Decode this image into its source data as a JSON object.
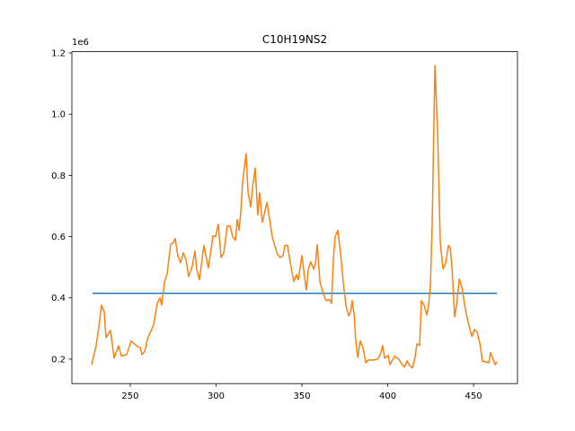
{
  "chart_data": {
    "type": "line",
    "title": "C10H19NS2",
    "offset_label": "1e6",
    "xlim": [
      216,
      475.6
    ],
    "ylim": [
      0.12,
      1.204
    ],
    "xticks": [
      250,
      300,
      350,
      400,
      450
    ],
    "yticks": [
      0.2,
      0.4,
      0.6,
      0.8,
      {
        "value": 1,
        "label": "1.0"
      },
      1.2
    ],
    "series": [
      {
        "color": "#1f77b4",
        "x": [
          228,
          463.6
        ],
        "values": [
          0.415,
          0.415
        ]
      },
      {
        "color": "#ff7f0e",
        "x": [
          227.5,
          230.1,
          232.2,
          233.2,
          234.8,
          235.9,
          238.5,
          240.6,
          243.2,
          244.8,
          247.9,
          250.5,
          254.2,
          255.8,
          256.8,
          258.4,
          260,
          263.6,
          265.7,
          267.3,
          268.3,
          269.9,
          271.5,
          273.6,
          275.1,
          276.2,
          277.7,
          279.3,
          280.9,
          282.5,
          284,
          286.1,
          287.7,
          288.7,
          290.3,
          292.9,
          295.5,
          297.1,
          298.2,
          299.7,
          301.3,
          302.9,
          304.5,
          306.5,
          308.1,
          309.7,
          311.3,
          312.3,
          313.4,
          314.4,
          315.4,
          317.5,
          318.6,
          320.2,
          321.2,
          322.8,
          324.3,
          325.4,
          326.9,
          328,
          329.6,
          331.2,
          332.7,
          334.3,
          335.9,
          337.4,
          339,
          340.1,
          341.6,
          343.7,
          345.3,
          346.9,
          347.9,
          350,
          351.6,
          352.6,
          353.7,
          355.2,
          356.8,
          357.9,
          358.9,
          360.5,
          362.6,
          364.1,
          366.2,
          367.3,
          368.3,
          369.4,
          370.9,
          372.5,
          374.1,
          375.7,
          377.2,
          378.3,
          379.3,
          380.4,
          381.4,
          382.5,
          384,
          385.6,
          387.2,
          388.7,
          391.9,
          394,
          395.5,
          397.1,
          398.2,
          400.3,
          401.3,
          403.9,
          406,
          408.1,
          409.7,
          411.3,
          412.8,
          414.4,
          416,
          417,
          418.6,
          419.6,
          421.2,
          422.8,
          423.8,
          424.9,
          425.9,
          427.5,
          429.1,
          430.6,
          432.2,
          433.8,
          435.4,
          436.4,
          437.5,
          439,
          440.1,
          441.7,
          443.2,
          444.8,
          446.9,
          449,
          450.5,
          452.1,
          453.7,
          455.2,
          458.9,
          459.9,
          462.6,
          463.6
        ],
        "values": [
          0.182,
          0.244,
          0.324,
          0.376,
          0.356,
          0.27,
          0.294,
          0.203,
          0.244,
          0.21,
          0.215,
          0.259,
          0.241,
          0.238,
          0.215,
          0.224,
          0.265,
          0.312,
          0.382,
          0.4,
          0.376,
          0.45,
          0.479,
          0.576,
          0.579,
          0.594,
          0.538,
          0.515,
          0.547,
          0.524,
          0.47,
          0.503,
          0.553,
          0.494,
          0.459,
          0.571,
          0.497,
          0.559,
          0.603,
          0.6,
          0.641,
          0.532,
          0.547,
          0.635,
          0.635,
          0.6,
          0.588,
          0.656,
          0.621,
          0.679,
          0.774,
          0.871,
          0.747,
          0.697,
          0.759,
          0.824,
          0.671,
          0.744,
          0.647,
          0.671,
          0.712,
          0.656,
          0.6,
          0.568,
          0.541,
          0.532,
          0.538,
          0.571,
          0.571,
          0.5,
          0.453,
          0.476,
          0.459,
          0.538,
          0.465,
          0.426,
          0.494,
          0.518,
          0.494,
          0.512,
          0.574,
          0.453,
          0.412,
          0.391,
          0.394,
          0.382,
          0.524,
          0.6,
          0.621,
          0.547,
          0.45,
          0.374,
          0.341,
          0.353,
          0.391,
          0.347,
          0.259,
          0.206,
          0.259,
          0.238,
          0.188,
          0.197,
          0.197,
          0.2,
          0.212,
          0.244,
          0.203,
          0.212,
          0.182,
          0.209,
          0.203,
          0.185,
          0.174,
          0.194,
          0.179,
          0.171,
          0.209,
          0.25,
          0.244,
          0.391,
          0.376,
          0.344,
          0.376,
          0.447,
          0.641,
          1.159,
          0.935,
          0.582,
          0.494,
          0.515,
          0.571,
          0.565,
          0.494,
          0.338,
          0.376,
          0.462,
          0.435,
          0.376,
          0.318,
          0.274,
          0.297,
          0.288,
          0.25,
          0.194,
          0.188,
          0.221,
          0.182,
          0.191
        ]
      }
    ]
  }
}
